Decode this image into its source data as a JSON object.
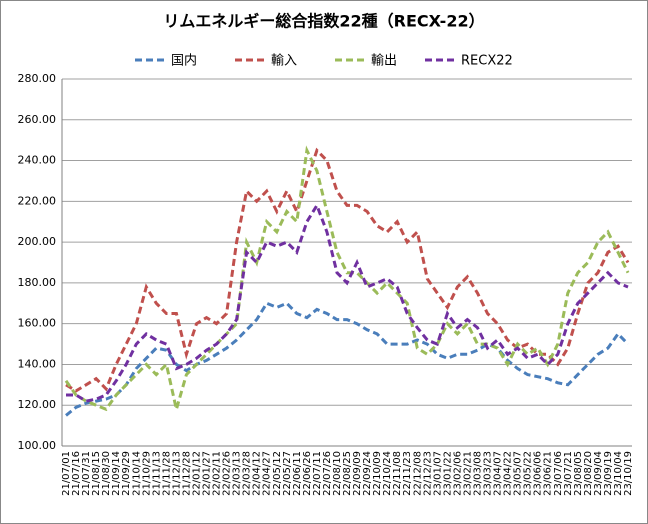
{
  "chart_data": {
    "type": "line",
    "title": "リムエネルギー総合指数22種（RECX-22）",
    "categories": [
      "21/07/01",
      "21/07/16",
      "21/07/31",
      "21/08/15",
      "21/08/30",
      "21/09/14",
      "21/09/29",
      "21/10/14",
      "21/10/29",
      "21/11/13",
      "21/11/28",
      "21/12/13",
      "21/12/28",
      "22/01/12",
      "22/01/27",
      "22/02/11",
      "22/02/26",
      "22/03/13",
      "22/03/28",
      "22/04/12",
      "22/04/27",
      "22/05/12",
      "22/05/27",
      "22/06/11",
      "22/06/26",
      "22/07/11",
      "22/07/26",
      "22/08/10",
      "22/08/25",
      "22/09/09",
      "22/09/24",
      "22/10/09",
      "22/10/24",
      "22/11/08",
      "22/11/23",
      "22/12/08",
      "22/12/23",
      "23/01/07",
      "23/01/22",
      "23/02/06",
      "23/02/21",
      "23/03/08",
      "23/03/23",
      "23/04/07",
      "23/04/22",
      "23/05/07",
      "23/05/22",
      "23/06/06",
      "23/06/21",
      "23/07/06",
      "23/07/21",
      "23/08/05",
      "23/08/20",
      "23/09/04",
      "23/09/19",
      "23/10/04",
      "23/10/19"
    ],
    "series": [
      {
        "name": "国内",
        "color": "#4a7ebb",
        "values": [
          115,
          119,
          121,
          122,
          123,
          125,
          130,
          138,
          143,
          148,
          147,
          140,
          137,
          140,
          142,
          145,
          148,
          152,
          157,
          162,
          170,
          168,
          170,
          165,
          163,
          167,
          165,
          162,
          162,
          160,
          157,
          155,
          150,
          150,
          150,
          152,
          150,
          145,
          143,
          145,
          145,
          147,
          150,
          148,
          142,
          138,
          135,
          134,
          133,
          131,
          130,
          135,
          140,
          145,
          148,
          155,
          150
        ]
      },
      {
        "name": "輸入",
        "color": "#c0504d",
        "values": [
          130,
          127,
          130,
          133,
          128,
          140,
          150,
          160,
          178,
          170,
          165,
          165,
          145,
          160,
          163,
          160,
          165,
          200,
          225,
          220,
          225,
          215,
          225,
          215,
          230,
          245,
          240,
          225,
          218,
          218,
          215,
          208,
          205,
          210,
          200,
          205,
          182,
          175,
          168,
          178,
          183,
          175,
          165,
          160,
          152,
          148,
          150,
          145,
          145,
          140,
          148,
          165,
          180,
          185,
          195,
          198,
          190
        ]
      },
      {
        "name": "輸出",
        "color": "#9bbb59",
        "values": [
          132,
          125,
          122,
          120,
          118,
          125,
          130,
          135,
          140,
          135,
          140,
          118,
          135,
          140,
          145,
          150,
          155,
          160,
          200,
          190,
          210,
          205,
          215,
          210,
          245,
          235,
          215,
          195,
          185,
          185,
          180,
          175,
          180,
          175,
          170,
          148,
          145,
          150,
          160,
          155,
          160,
          150,
          150,
          148,
          140,
          150,
          145,
          148,
          140,
          150,
          175,
          185,
          190,
          200,
          205,
          195,
          185
        ]
      },
      {
        "name": "RECX22",
        "color": "#7030a0",
        "values": [
          125,
          125,
          122,
          123,
          125,
          132,
          140,
          150,
          155,
          152,
          150,
          138,
          140,
          143,
          147,
          150,
          155,
          162,
          195,
          190,
          200,
          198,
          200,
          195,
          210,
          218,
          205,
          185,
          180,
          190,
          178,
          180,
          182,
          178,
          165,
          158,
          152,
          150,
          165,
          158,
          162,
          158,
          148,
          152,
          145,
          148,
          143,
          145,
          140,
          145,
          160,
          170,
          175,
          180,
          185,
          180,
          178
        ]
      }
    ],
    "ylim": [
      100,
      280
    ],
    "yticks": [
      {
        "value": 100,
        "label": "100.00"
      },
      {
        "value": 120,
        "label": "120.00"
      },
      {
        "value": 140,
        "label": "140.00"
      },
      {
        "value": 160,
        "label": "160.00"
      },
      {
        "value": 180,
        "label": "180.00"
      },
      {
        "value": 200,
        "label": "200.00"
      },
      {
        "value": 220,
        "label": "220.00"
      },
      {
        "value": 240,
        "label": "240.00"
      },
      {
        "value": 260,
        "label": "260.00"
      },
      {
        "value": 280,
        "label": "280.00"
      }
    ],
    "grid": true,
    "legend": "top"
  }
}
